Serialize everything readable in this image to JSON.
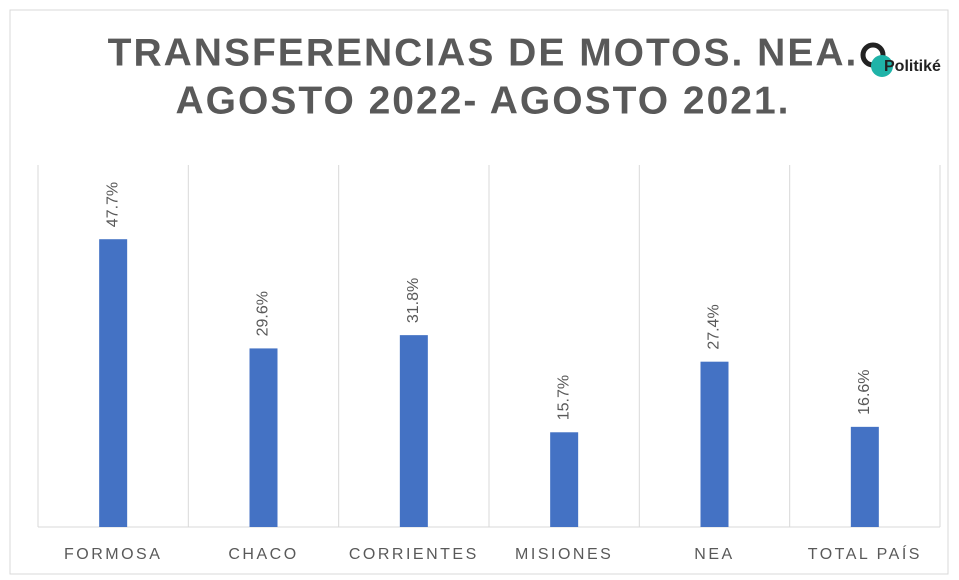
{
  "chart_data": {
    "type": "bar",
    "title": [
      "TRANSFERENCIAS DE MOTOS. NEA.",
      "AGOSTO 2022- AGOSTO 2021."
    ],
    "logo": "Politiké",
    "categories": [
      "FORMOSA",
      "CHACO",
      "CORRIENTES",
      "MISIONES",
      "NEA",
      "TOTAL PAÍS"
    ],
    "values": [
      47.7,
      29.6,
      31.8,
      15.7,
      27.4,
      16.6
    ],
    "value_labels": [
      "47.7%",
      "29.6%",
      "31.8%",
      "15.7%",
      "27.4%",
      "16.6%"
    ],
    "color": "#4472c4",
    "ylim": [
      0,
      60
    ]
  }
}
